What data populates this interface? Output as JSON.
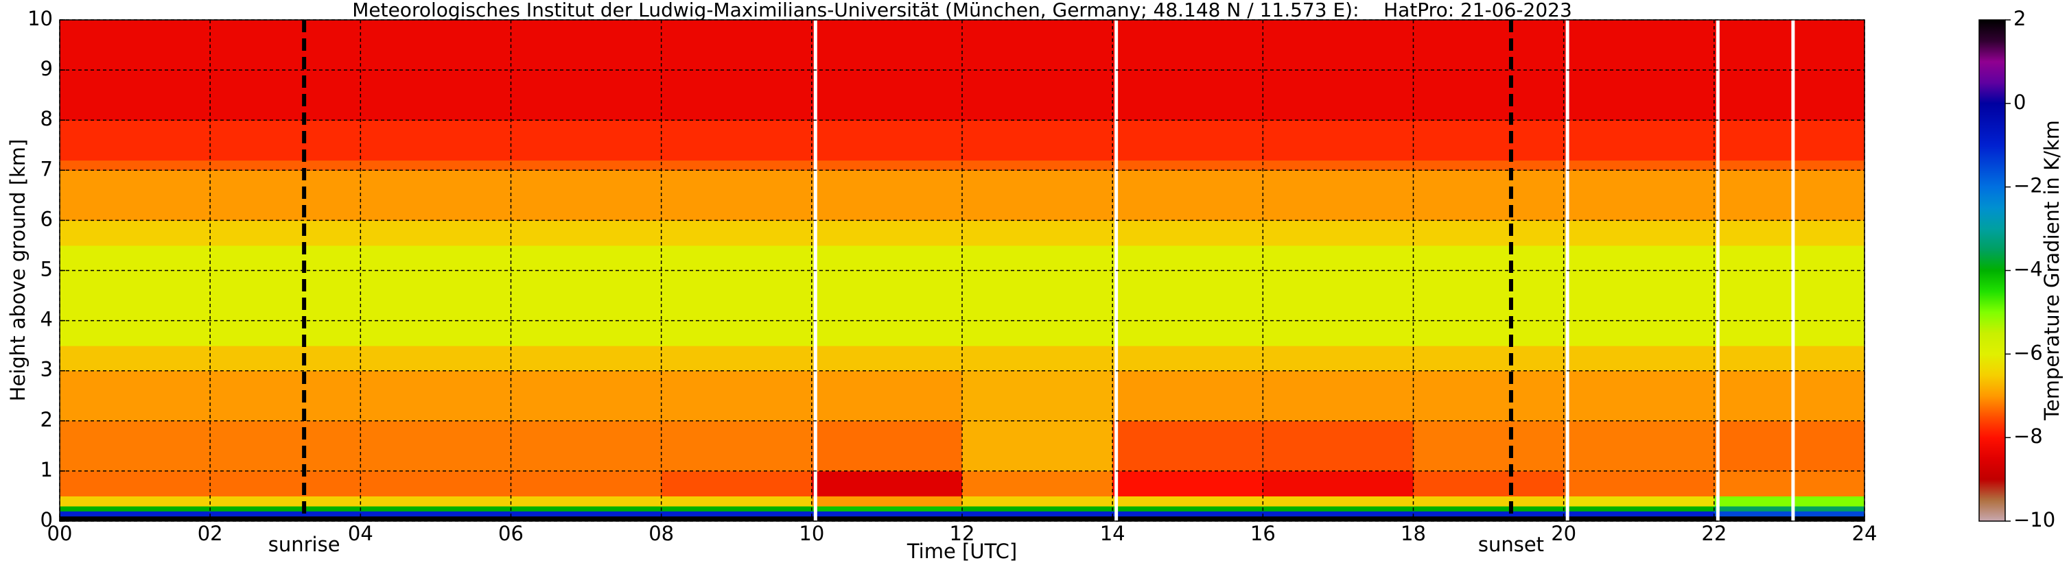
{
  "chart_data": {
    "type": "heatmap",
    "title": "Meteorologisches Institut der Ludwig-Maximilians-Universität (München, Germany; 48.148 N / 11.573 E):    HatPro: 21-06-2023",
    "x_label": "Time [UTC]",
    "y_label": "Height above ground [km]",
    "colorbar_label": "Temperature Gradient in K/km",
    "x_bins": [
      0,
      2,
      4,
      6,
      8,
      10,
      12,
      14,
      16,
      18,
      20,
      22,
      24
    ],
    "y_bins": [
      0,
      0.1,
      0.2,
      0.3,
      0.5,
      1,
      2,
      3,
      3.5,
      5.5,
      6,
      7,
      7.2,
      8,
      10
    ],
    "z": [
      [
        2,
        2,
        2,
        2,
        2,
        2,
        2,
        2,
        2,
        2,
        2,
        2
      ],
      [
        -1,
        -1,
        -1,
        -1,
        -1,
        -1,
        -1,
        -1,
        -1,
        -1,
        -1,
        -1.5
      ],
      [
        -4,
        -4,
        -4,
        -4,
        -4,
        -4.2,
        -4,
        -4,
        -4,
        -4,
        -4,
        -3.5
      ],
      [
        -6.5,
        -6.5,
        -6.5,
        -6.5,
        -6.5,
        -7,
        -6.5,
        -6.5,
        -6.5,
        -6.5,
        -6.3,
        -5
      ],
      [
        -7.3,
        -7.3,
        -7.3,
        -7.3,
        -7.5,
        -8.5,
        -7.2,
        -8,
        -8.2,
        -7.5,
        -7.3,
        -7.2
      ],
      [
        -7.2,
        -7.2,
        -7.2,
        -7.2,
        -7.2,
        -7.3,
        -6.8,
        -7.5,
        -7.5,
        -7.2,
        -7.2,
        -7.3
      ],
      [
        -7,
        -7,
        -7,
        -7,
        -7,
        -7,
        -6.8,
        -7,
        -7,
        -7,
        -7,
        -7
      ],
      [
        -6.6,
        -6.6,
        -6.6,
        -6.6,
        -6.6,
        -6.6,
        -6.6,
        -6.6,
        -6.6,
        -6.6,
        -6.6,
        -6.6
      ],
      [
        -6,
        -6,
        -6,
        -6,
        -6,
        -6,
        -6,
        -6,
        -6,
        -6,
        -6,
        -6
      ],
      [
        -6.5,
        -6.5,
        -6.5,
        -6.5,
        -6.5,
        -6.5,
        -6.5,
        -6.5,
        -6.5,
        -6.5,
        -6.5,
        -6.5
      ],
      [
        -7,
        -7,
        -7,
        -7,
        -7,
        -7,
        -7,
        -7,
        -7,
        -7,
        -7,
        -7
      ],
      [
        -7.4,
        -7.4,
        -7.4,
        -7.4,
        -7.4,
        -7.4,
        -7.4,
        -7.4,
        -7.4,
        -7.4,
        -7.4,
        -7.4
      ],
      [
        -7.8,
        -7.8,
        -7.8,
        -7.8,
        -7.8,
        -7.8,
        -7.8,
        -7.8,
        -7.8,
        -7.8,
        -7.8,
        -7.8
      ],
      [
        -8.3,
        -8.3,
        -8.3,
        -8.3,
        -8.3,
        -8.3,
        -8.3,
        -8.3,
        -8.3,
        -8.3,
        -8.3,
        -8.3
      ]
    ],
    "gaps": [
      10.05,
      14.05,
      20.05,
      22.05,
      23.05
    ],
    "annotations": [
      {
        "text": "sunrise",
        "x": 3.25
      },
      {
        "text": "sunset",
        "x": 19.3
      }
    ],
    "xlim": [
      0,
      24
    ],
    "ylim": [
      0,
      10
    ],
    "xticks": [
      {
        "value": 0,
        "label": "00"
      },
      {
        "value": 2,
        "label": "02"
      },
      {
        "value": 4,
        "label": "04"
      },
      {
        "value": 6,
        "label": "06"
      },
      {
        "value": 8,
        "label": "08"
      },
      10,
      12,
      14,
      16,
      18,
      20,
      22,
      24
    ],
    "yticks": [
      0,
      1,
      2,
      3,
      4,
      5,
      6,
      7,
      8,
      9,
      10
    ],
    "clim": [
      -10,
      2
    ],
    "cticks": [
      2,
      0,
      {
        "value": -2,
        "label": "−2"
      },
      {
        "value": -4,
        "label": "−4"
      },
      {
        "value": -6,
        "label": "−6"
      },
      {
        "value": -8,
        "label": "−8"
      },
      {
        "value": -10,
        "label": "−10"
      }
    ],
    "colorscale": [
      [
        -10,
        "#c8a8b0"
      ],
      [
        -9.5,
        "#b07040"
      ],
      [
        -9,
        "#c00000"
      ],
      [
        -8.5,
        "#e00000"
      ],
      [
        -8,
        "#ff1000"
      ],
      [
        -7.5,
        "#ff5000"
      ],
      [
        -7,
        "#ff9a00"
      ],
      [
        -6.5,
        "#f5d000"
      ],
      [
        -6,
        "#e0f000"
      ],
      [
        -5.5,
        "#c8f000"
      ],
      [
        -5,
        "#80ff00"
      ],
      [
        -4.5,
        "#20e000"
      ],
      [
        -4,
        "#00b000"
      ],
      [
        -3.5,
        "#00a060"
      ],
      [
        -3,
        "#00a0a0"
      ],
      [
        -2.5,
        "#0090d0"
      ],
      [
        -2,
        "#0070e0"
      ],
      [
        -1,
        "#0020d0"
      ],
      [
        0,
        "#0000a0"
      ],
      [
        0.5,
        "#6000a0"
      ],
      [
        1,
        "#900090"
      ],
      [
        1.5,
        "#300030"
      ],
      [
        2,
        "#000000"
      ]
    ],
    "grid": true
  }
}
